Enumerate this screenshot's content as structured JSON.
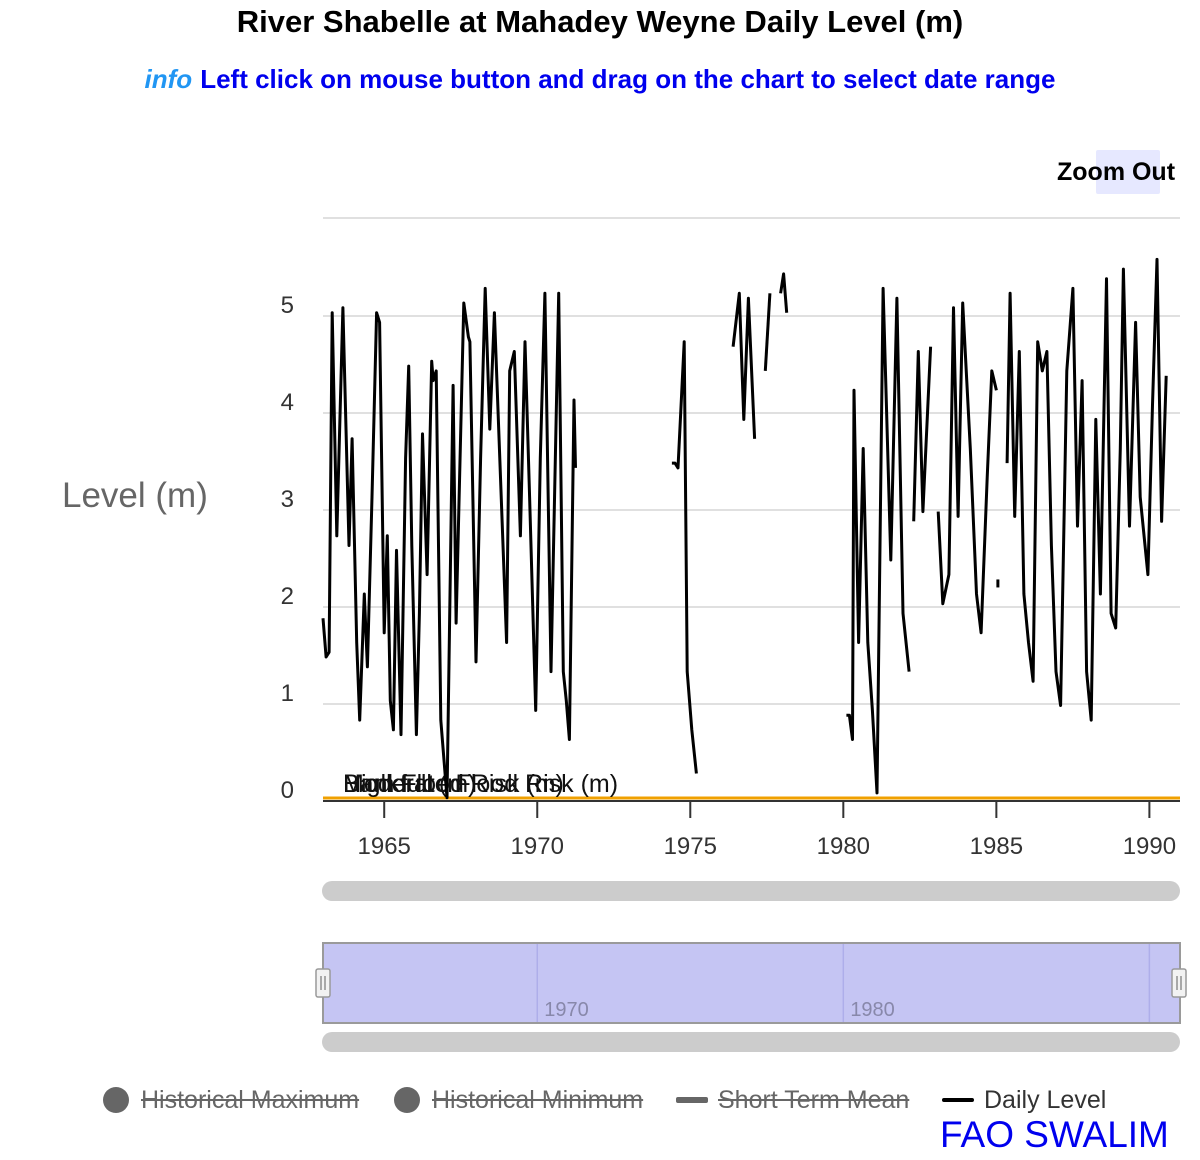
{
  "title": "River Shabelle at Mahadey Weyne Daily Level (m)",
  "subtitle": {
    "info": "info",
    "text": "Left click on mouse button and drag on the chart to select date range"
  },
  "zoom_out_label": "Zoom Out",
  "watermark": "FAO SWALIM",
  "colors": {
    "line": "#000000",
    "threshold": "#f0a000",
    "navigator_fill": "#c5c5f3",
    "navigator_border": "#9a9a9a",
    "scrollbar": "#cccccc",
    "title_blue": "#0000ee",
    "info_blue": "#2196f3"
  },
  "chart_data": {
    "type": "line",
    "title": "River Shabelle at Mahadey Weyne Daily Level (m)",
    "ylabel": "Level (m)",
    "xlabel": "",
    "xlim": [
      1963,
      1991
    ],
    "ylim": [
      -0.15,
      6.0
    ],
    "x_ticks": [
      "1965",
      "1970",
      "1975",
      "1980",
      "1985",
      "1990"
    ],
    "y_ticks": [
      "0",
      "1",
      "2",
      "3",
      "4",
      "5"
    ],
    "navigator_ticks": [
      "1970",
      "1980"
    ],
    "threshold_labels": [
      "Moderate Flood Risk (m)",
      "High Flood Risk (m)",
      "Bankfull (m)"
    ],
    "threshold_value": 0,
    "legend": [
      {
        "name": "Historical Maximum",
        "icon": "circle-icon",
        "visible": false
      },
      {
        "name": "Historical Minimum",
        "icon": "circle-icon",
        "visible": false
      },
      {
        "name": "Short Term Mean",
        "icon": "dash-icon",
        "visible": false
      },
      {
        "name": "Daily Level",
        "icon": "line-icon",
        "visible": true
      }
    ],
    "series": [
      {
        "name": "Daily Level",
        "segments": [
          [
            [
              1963.0,
              1.75
            ],
            [
              1963.1,
              1.35
            ],
            [
              1963.2,
              1.4
            ],
            [
              1963.3,
              4.9
            ],
            [
              1963.45,
              2.6
            ],
            [
              1963.65,
              4.95
            ],
            [
              1963.85,
              2.5
            ],
            [
              1963.95,
              3.6
            ],
            [
              1964.1,
              1.5
            ],
            [
              1964.2,
              0.7
            ],
            [
              1964.35,
              2.0
            ],
            [
              1964.45,
              1.25
            ],
            [
              1964.6,
              3.0
            ],
            [
              1964.75,
              4.9
            ],
            [
              1964.85,
              4.8
            ],
            [
              1965.0,
              1.6
            ],
            [
              1965.1,
              2.6
            ],
            [
              1965.2,
              0.9
            ],
            [
              1965.3,
              0.6
            ],
            [
              1965.4,
              2.45
            ],
            [
              1965.55,
              0.55
            ],
            [
              1965.7,
              3.4
            ],
            [
              1965.8,
              4.35
            ],
            [
              1965.9,
              2.5
            ],
            [
              1966.05,
              0.55
            ],
            [
              1966.15,
              1.8
            ],
            [
              1966.25,
              3.65
            ],
            [
              1966.4,
              2.2
            ],
            [
              1966.55,
              4.4
            ],
            [
              1966.6,
              4.2
            ],
            [
              1966.7,
              4.3
            ],
            [
              1966.85,
              0.7
            ],
            [
              1967.05,
              -0.1
            ],
            [
              1967.25,
              4.15
            ],
            [
              1967.35,
              1.7
            ],
            [
              1967.6,
              5.0
            ],
            [
              1967.75,
              4.65
            ],
            [
              1967.8,
              4.6
            ],
            [
              1968.0,
              1.3
            ],
            [
              1968.15,
              3.4
            ],
            [
              1968.3,
              5.15
            ],
            [
              1968.45,
              3.7
            ],
            [
              1968.6,
              4.9
            ],
            [
              1968.8,
              3.2
            ],
            [
              1969.0,
              1.5
            ],
            [
              1969.1,
              4.3
            ],
            [
              1969.25,
              4.5
            ],
            [
              1969.45,
              2.6
            ],
            [
              1969.6,
              4.6
            ],
            [
              1969.75,
              3.0
            ],
            [
              1969.95,
              0.8
            ],
            [
              1970.1,
              3.4
            ],
            [
              1970.25,
              5.1
            ],
            [
              1970.45,
              1.2
            ],
            [
              1970.7,
              5.1
            ],
            [
              1970.85,
              1.2
            ],
            [
              1970.95,
              0.9
            ],
            [
              1971.05,
              0.5
            ],
            [
              1971.2,
              4.0
            ],
            [
              1971.25,
              3.3
            ]
          ],
          [
            [
              1974.4,
              3.35
            ],
            [
              1974.5,
              3.35
            ],
            [
              1974.6,
              3.3
            ],
            [
              1974.8,
              4.6
            ],
            [
              1974.9,
              1.2
            ],
            [
              1975.05,
              0.6
            ],
            [
              1975.2,
              0.15
            ]
          ],
          [
            [
              1976.4,
              4.55
            ],
            [
              1976.6,
              5.1
            ],
            [
              1976.75,
              3.8
            ],
            [
              1976.9,
              5.05
            ],
            [
              1977.1,
              3.6
            ]
          ],
          [
            [
              1977.45,
              4.3
            ],
            [
              1977.6,
              5.1
            ]
          ],
          [
            [
              1977.95,
              5.1
            ],
            [
              1978.05,
              5.3
            ],
            [
              1978.15,
              4.9
            ]
          ],
          [
            [
              1980.1,
              0.75
            ],
            [
              1980.2,
              0.75
            ],
            [
              1980.3,
              0.5
            ],
            [
              1980.35,
              4.1
            ],
            [
              1980.5,
              1.5
            ],
            [
              1980.65,
              3.5
            ],
            [
              1980.8,
              1.5
            ],
            [
              1980.95,
              0.8
            ],
            [
              1981.1,
              -0.05
            ],
            [
              1981.3,
              5.15
            ],
            [
              1981.55,
              2.35
            ],
            [
              1981.75,
              5.05
            ],
            [
              1981.95,
              1.8
            ],
            [
              1982.15,
              1.2
            ]
          ],
          [
            [
              1982.3,
              2.75
            ],
            [
              1982.45,
              4.5
            ],
            [
              1982.6,
              2.85
            ],
            [
              1982.85,
              4.55
            ]
          ],
          [
            [
              1983.1,
              2.85
            ],
            [
              1983.25,
              1.9
            ],
            [
              1983.45,
              2.2
            ],
            [
              1983.6,
              4.95
            ],
            [
              1983.75,
              2.8
            ],
            [
              1983.9,
              5.0
            ],
            [
              1984.15,
              3.5
            ],
            [
              1984.35,
              2.0
            ],
            [
              1984.5,
              1.6
            ],
            [
              1984.7,
              3.2
            ],
            [
              1984.85,
              4.3
            ],
            [
              1985.0,
              4.1
            ]
          ],
          [
            [
              1985.05,
              2.15
            ]
          ],
          [
            [
              1985.35,
              3.35
            ],
            [
              1985.45,
              5.1
            ],
            [
              1985.6,
              2.8
            ],
            [
              1985.75,
              4.5
            ],
            [
              1985.9,
              2.0
            ],
            [
              1986.05,
              1.5
            ],
            [
              1986.2,
              1.1
            ],
            [
              1986.35,
              4.6
            ],
            [
              1986.5,
              4.3
            ],
            [
              1986.65,
              4.5
            ],
            [
              1986.8,
              2.5
            ],
            [
              1986.95,
              1.2
            ],
            [
              1987.1,
              0.85
            ],
            [
              1987.3,
              4.3
            ],
            [
              1987.5,
              5.15
            ],
            [
              1987.65,
              2.7
            ],
            [
              1987.8,
              4.2
            ],
            [
              1987.95,
              1.2
            ],
            [
              1988.1,
              0.7
            ],
            [
              1988.25,
              3.8
            ],
            [
              1988.4,
              2.0
            ],
            [
              1988.6,
              5.25
            ],
            [
              1988.75,
              1.8
            ],
            [
              1988.9,
              1.65
            ],
            [
              1989.05,
              3.5
            ],
            [
              1989.15,
              5.35
            ],
            [
              1989.35,
              2.7
            ],
            [
              1989.55,
              4.8
            ],
            [
              1989.7,
              3.0
            ],
            [
              1989.95,
              2.2
            ],
            [
              1990.1,
              3.95
            ],
            [
              1990.25,
              5.45
            ],
            [
              1990.4,
              2.75
            ],
            [
              1990.55,
              4.25
            ]
          ]
        ]
      }
    ]
  }
}
